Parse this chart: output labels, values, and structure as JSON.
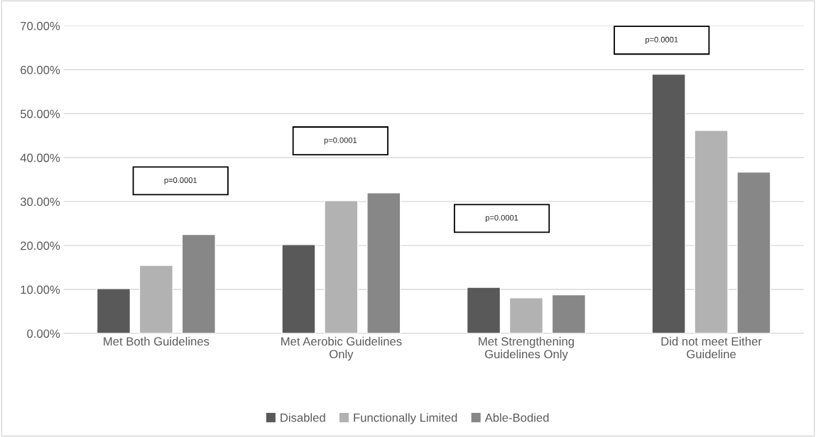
{
  "chart_data": {
    "type": "bar",
    "categories": [
      "Met Both Guidelines",
      "Met Aerobic Guidelines Only",
      "Met Strengthening Guidelines Only",
      "Did not meet Either Guideline"
    ],
    "series": [
      {
        "name": "Disabled",
        "color": "#595959",
        "values": [
          10.2,
          20.2,
          10.5,
          59.0
        ]
      },
      {
        "name": "Functionally Limited",
        "color": "#b2b2b2",
        "values": [
          15.5,
          30.2,
          8.1,
          46.2
        ]
      },
      {
        "name": "Able-Bodied",
        "color": "#878787",
        "values": [
          22.5,
          32.0,
          8.8,
          36.7
        ]
      }
    ],
    "ylim": [
      0,
      70
    ],
    "yticks": [
      {
        "value": 0,
        "label": "0.00%"
      },
      {
        "value": 10,
        "label": "10.00%"
      },
      {
        "value": 20,
        "label": "20.00%"
      },
      {
        "value": 30,
        "label": "30.00%"
      },
      {
        "value": 40,
        "label": "40.00%"
      },
      {
        "value": 50,
        "label": "50.00%"
      },
      {
        "value": 60,
        "label": "60.00%"
      },
      {
        "value": 70,
        "label": "70.00%"
      }
    ],
    "annotations": [
      "p=0.0001",
      "p=0.0001",
      "p=0.0001",
      "p=0.0001"
    ],
    "grid": "y",
    "legend": "bottom"
  }
}
